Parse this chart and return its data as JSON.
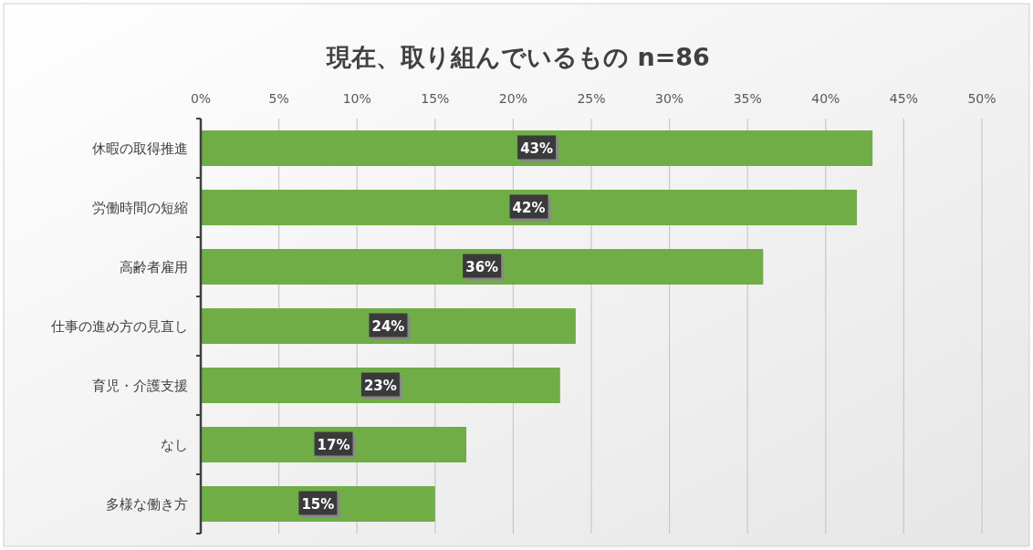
{
  "chart_data": {
    "type": "bar",
    "orientation": "horizontal",
    "title": "現在、取り組んでいるもの n=86",
    "categories": [
      "休暇の取得推進",
      "労働時間の短縮",
      "高齢者雇用",
      "仕事の進め方の見直し",
      "育児・介護支援",
      "なし",
      "多様な働き方"
    ],
    "values": [
      43,
      42,
      36,
      24,
      23,
      17,
      15
    ],
    "value_labels": [
      "43%",
      "42%",
      "36%",
      "24%",
      "23%",
      "17%",
      "15%"
    ],
    "color": "#70ad47",
    "xlim": [
      0,
      50
    ],
    "xticks": [
      {
        "value": 0,
        "label": "0%"
      },
      {
        "value": 5,
        "label": "5%"
      },
      {
        "value": 10,
        "label": "10%"
      },
      {
        "value": 15,
        "label": "15%"
      },
      {
        "value": 20,
        "label": "20%"
      },
      {
        "value": 25,
        "label": "25%"
      },
      {
        "value": 30,
        "label": "30%"
      },
      {
        "value": 35,
        "label": "35%"
      },
      {
        "value": 40,
        "label": "40%"
      },
      {
        "value": 45,
        "label": "45%"
      },
      {
        "value": 50,
        "label": "50%"
      }
    ],
    "grid": "x"
  }
}
